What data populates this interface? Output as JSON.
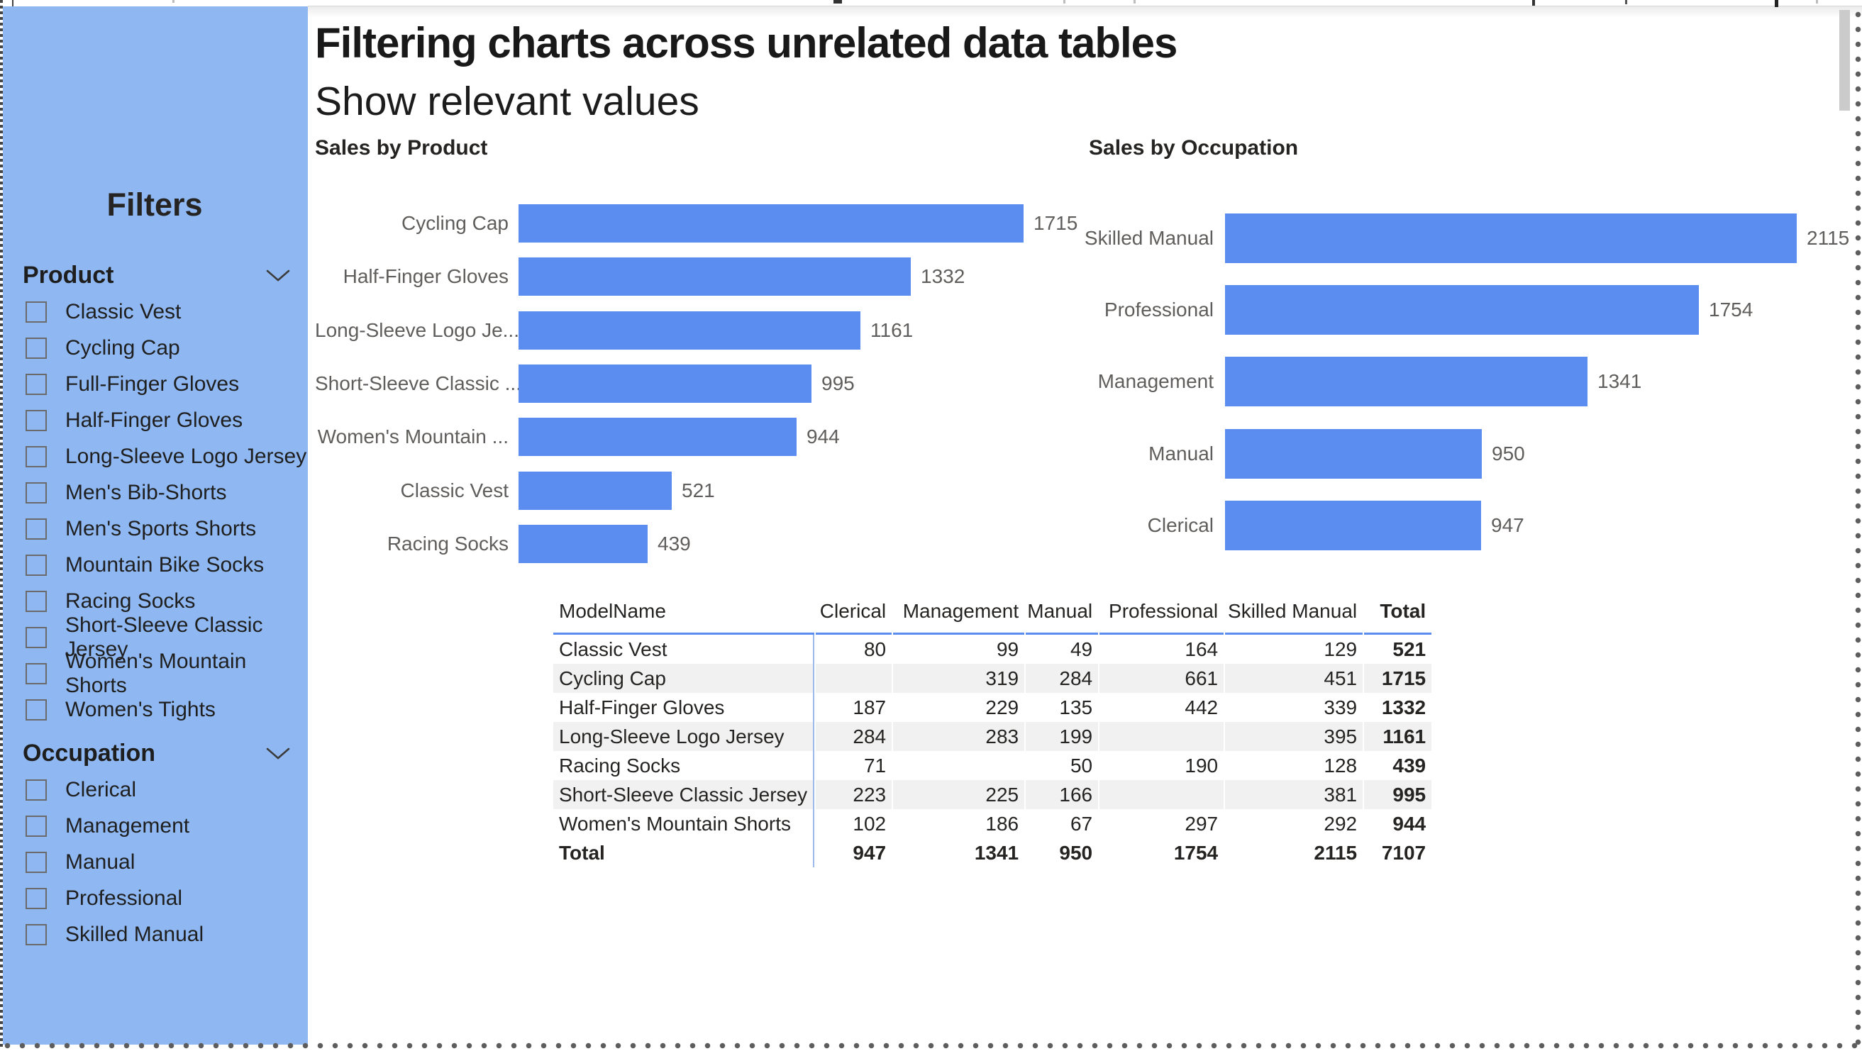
{
  "filters": {
    "title": "Filters",
    "groups": [
      {
        "label": "Product",
        "items": [
          "Classic Vest",
          "Cycling Cap",
          "Full-Finger Gloves",
          "Half-Finger Gloves",
          "Long-Sleeve Logo Jersey",
          "Men's Bib-Shorts",
          "Men's Sports Shorts",
          "Mountain Bike Socks",
          "Racing Socks",
          "Short-Sleeve Classic Jersey",
          "Women's Mountain Shorts",
          "Women's Tights"
        ]
      },
      {
        "label": "Occupation",
        "items": [
          "Clerical",
          "Management",
          "Manual",
          "Professional",
          "Skilled Manual"
        ]
      }
    ]
  },
  "header": {
    "title": "Filtering charts across unrelated data tables",
    "subtitle": "Show relevant values"
  },
  "chart_data": [
    {
      "type": "bar",
      "orientation": "horizontal",
      "title": "Sales by Product",
      "categories": [
        "Cycling Cap",
        "Half-Finger Gloves",
        "Long-Sleeve Logo Je...",
        "Short-Sleeve Classic ...",
        "Women's Mountain ...",
        "Classic Vest",
        "Racing Socks"
      ],
      "values": [
        1715,
        1332,
        1161,
        995,
        944,
        521,
        439
      ],
      "value_labels": true,
      "grid": false,
      "axis_shown": false
    },
    {
      "type": "bar",
      "orientation": "horizontal",
      "title": "Sales by Occupation",
      "categories": [
        "Skilled Manual",
        "Professional",
        "Management",
        "Manual",
        "Clerical"
      ],
      "values": [
        2115,
        1754,
        1341,
        950,
        947
      ],
      "value_labels": true,
      "grid": false,
      "axis_shown": false
    }
  ],
  "table": {
    "columns": [
      "ModelName",
      "Clerical",
      "Management",
      "Manual",
      "Professional",
      "Skilled Manual",
      "Total"
    ],
    "rows": [
      [
        "Classic Vest",
        "80",
        "99",
        "49",
        "164",
        "129",
        "521"
      ],
      [
        "Cycling Cap",
        "",
        "319",
        "284",
        "661",
        "451",
        "1715"
      ],
      [
        "Half-Finger Gloves",
        "187",
        "229",
        "135",
        "442",
        "339",
        "1332"
      ],
      [
        "Long-Sleeve Logo Jersey",
        "284",
        "283",
        "199",
        "",
        "395",
        "1161"
      ],
      [
        "Racing Socks",
        "71",
        "",
        "50",
        "190",
        "128",
        "439"
      ],
      [
        "Short-Sleeve Classic Jersey",
        "223",
        "225",
        "166",
        "",
        "381",
        "995"
      ],
      [
        "Women's Mountain Shorts",
        "102",
        "186",
        "67",
        "297",
        "292",
        "944"
      ],
      [
        "Total",
        "947",
        "1341",
        "950",
        "1754",
        "2115",
        "7107"
      ]
    ]
  },
  "colors": {
    "accent_blue": "#5B8CF0",
    "panel_blue": "#8FB8F2",
    "alt_row_gray": "#F1F1F1",
    "label_gray": "#605E5C"
  }
}
